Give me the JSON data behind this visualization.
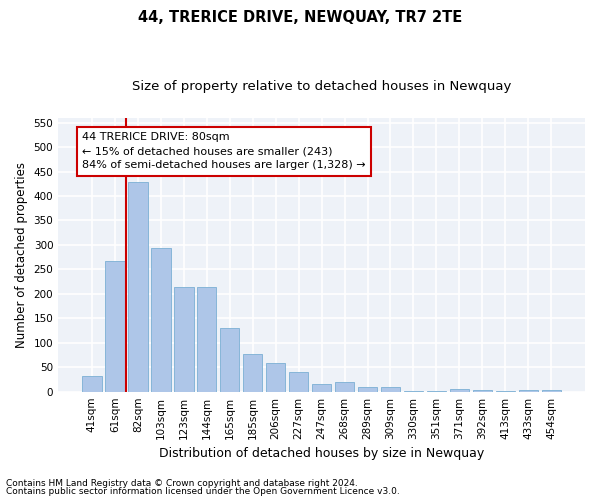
{
  "title": "44, TRERICE DRIVE, NEWQUAY, TR7 2TE",
  "subtitle": "Size of property relative to detached houses in Newquay",
  "xlabel": "Distribution of detached houses by size in Newquay",
  "ylabel": "Number of detached properties",
  "footnote1": "Contains HM Land Registry data © Crown copyright and database right 2024.",
  "footnote2": "Contains public sector information licensed under the Open Government Licence v3.0.",
  "annotation_line1": "44 TRERICE DRIVE: 80sqm",
  "annotation_line2": "← 15% of detached houses are smaller (243)",
  "annotation_line3": "84% of semi-detached houses are larger (1,328) →",
  "bar_labels": [
    "41sqm",
    "61sqm",
    "82sqm",
    "103sqm",
    "123sqm",
    "144sqm",
    "165sqm",
    "185sqm",
    "206sqm",
    "227sqm",
    "247sqm",
    "268sqm",
    "289sqm",
    "309sqm",
    "330sqm",
    "351sqm",
    "371sqm",
    "392sqm",
    "413sqm",
    "433sqm",
    "454sqm"
  ],
  "bar_values": [
    33,
    267,
    428,
    293,
    215,
    215,
    130,
    78,
    59,
    40,
    15,
    20,
    9,
    10,
    2,
    1,
    5,
    4,
    2,
    3,
    4
  ],
  "bar_color": "#aec6e8",
  "bar_edge_color": "#7bafd4",
  "ylim": [
    0,
    560
  ],
  "yticks": [
    0,
    50,
    100,
    150,
    200,
    250,
    300,
    350,
    400,
    450,
    500,
    550
  ],
  "bg_color": "#eef2f8",
  "grid_color": "#ffffff",
  "red_line_color": "#cc0000",
  "annotation_box_color": "#cc0000",
  "title_fontsize": 10.5,
  "subtitle_fontsize": 9.5,
  "axis_label_fontsize": 8.5,
  "tick_fontsize": 7.5,
  "annotation_fontsize": 8,
  "footnote_fontsize": 6.5
}
